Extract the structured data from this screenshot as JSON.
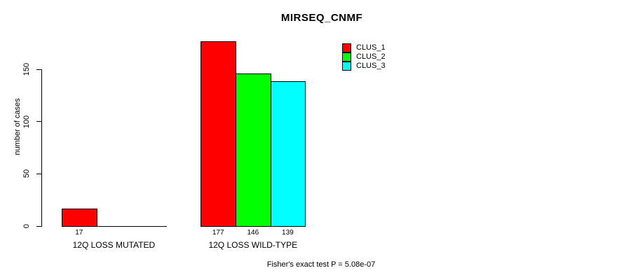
{
  "chart_data": {
    "type": "bar",
    "title": "MIRSEQ_CNMF",
    "ylabel": "number of cases",
    "xlabel": "",
    "categories": [
      "12Q LOSS MUTATED",
      "12Q LOSS WILD-TYPE"
    ],
    "series": [
      {
        "name": "CLUS_1",
        "color": "#ff0000",
        "values": [
          17,
          177
        ]
      },
      {
        "name": "CLUS_2",
        "color": "#00ff00",
        "values": [
          0,
          146
        ]
      },
      {
        "name": "CLUS_3",
        "color": "#00ffff",
        "values": [
          0,
          139
        ]
      }
    ],
    "bar_value_labels": [
      [
        "17",
        "",
        ""
      ],
      [
        "177",
        "146",
        "139"
      ]
    ],
    "yticks": [
      "0",
      "50",
      "100",
      "150"
    ],
    "ylim": [
      0,
      185
    ],
    "grid": false,
    "legend_position": "top-right",
    "annotation": "Fisher's exact test P = 5.08e-07"
  },
  "legend": {
    "items": [
      {
        "label": "CLUS_1",
        "color": "#ff0000"
      },
      {
        "label": "CLUS_2",
        "color": "#00ff00"
      },
      {
        "label": "CLUS_3",
        "color": "#00ffff"
      }
    ]
  }
}
